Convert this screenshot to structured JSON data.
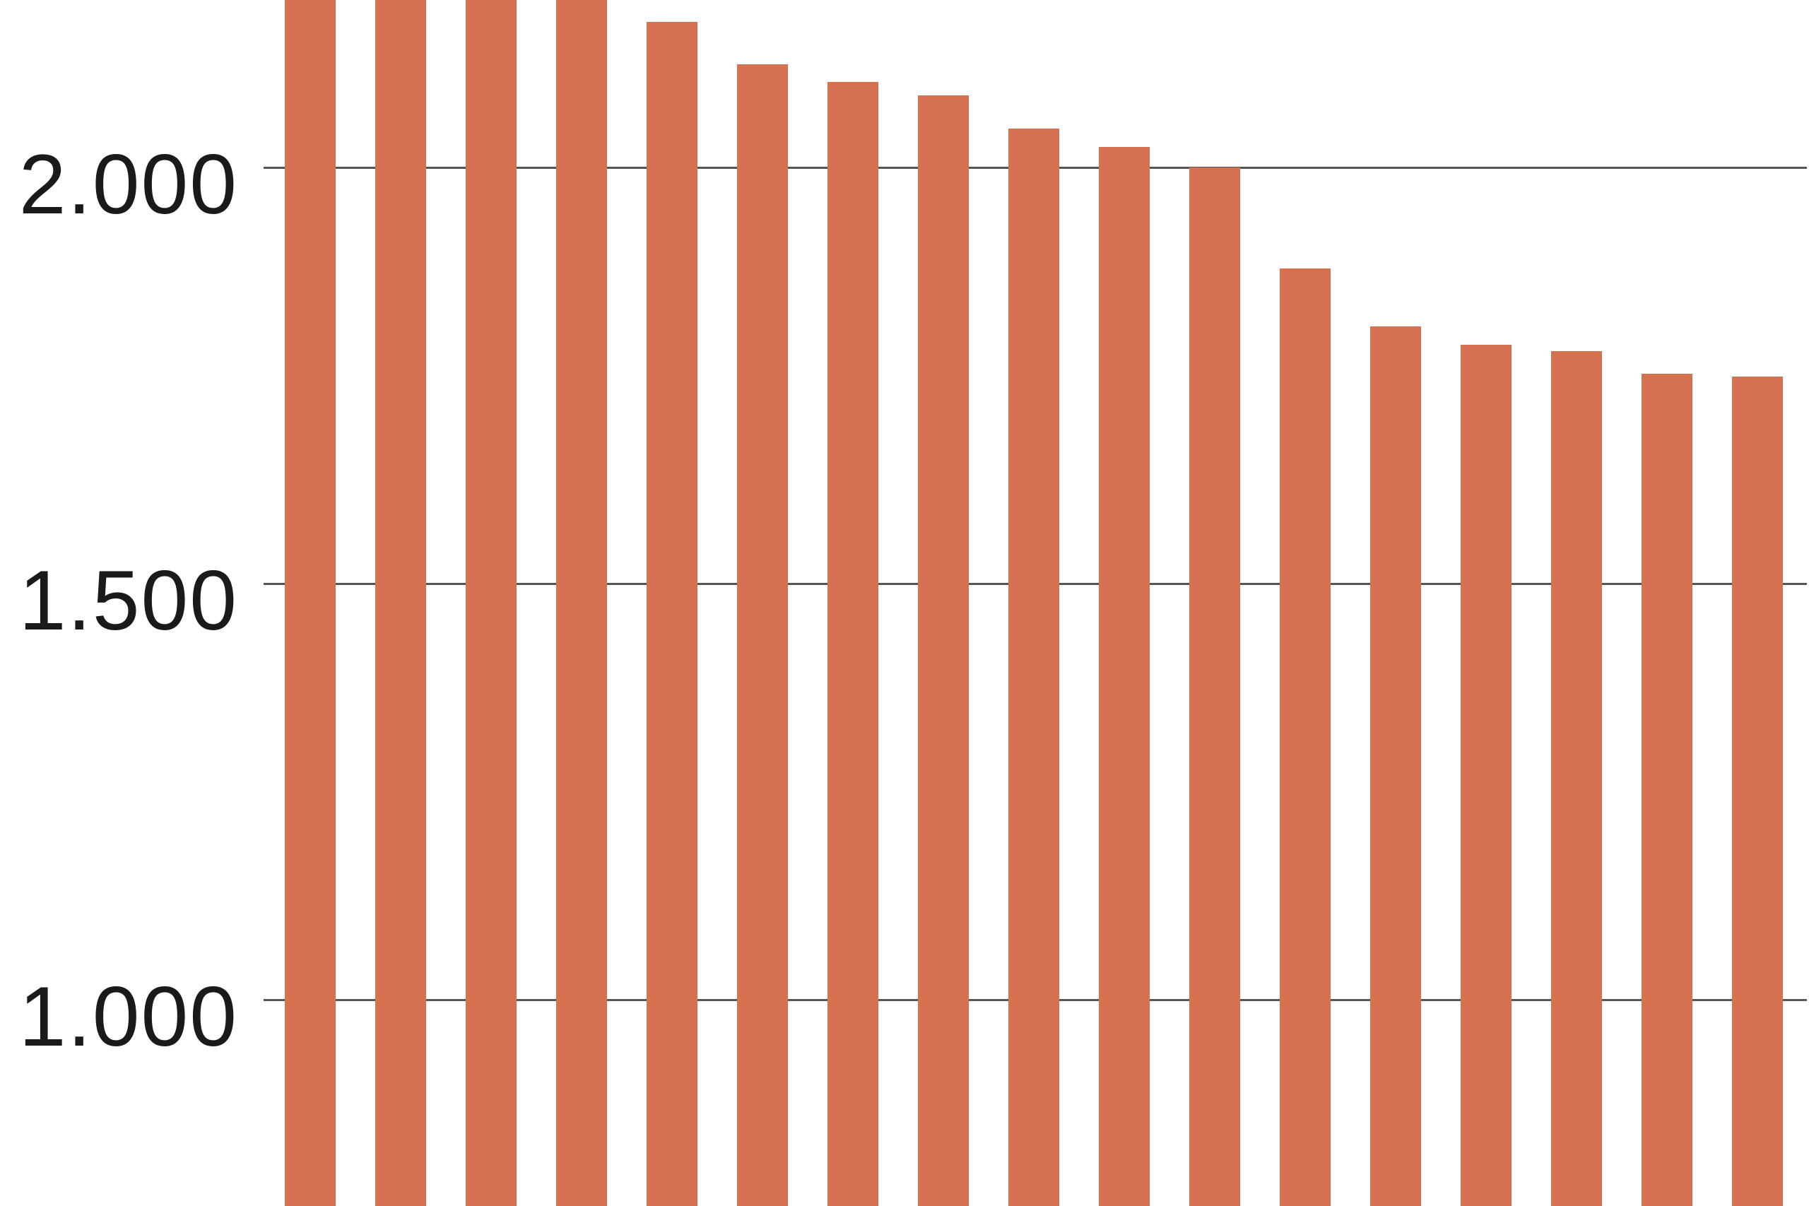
{
  "chart_data": {
    "type": "bar",
    "title": "",
    "legend": false,
    "y_axis": {
      "ticks": [
        {
          "value": 2000,
          "label": "2.000"
        },
        {
          "value": 1500,
          "label": "1.500"
        },
        {
          "value": 1000,
          "label": "1.000"
        }
      ],
      "number_format": "dot-as-thousands-separator",
      "gridlines": "horizontal-only",
      "axis_line": false,
      "visible_value_range": [
        754,
        2201
      ]
    },
    "x_axis": {
      "labels": [],
      "visible": false
    },
    "bars": {
      "count": 17,
      "values": [
        null,
        null,
        null,
        null,
        2175,
        2124,
        2103,
        2087,
        2047,
        2025,
        2000,
        1879,
        1809,
        1787,
        1779,
        1752,
        1749
      ],
      "clipped_at_top": [
        true,
        true,
        true,
        true,
        false,
        false,
        false,
        false,
        false,
        false,
        false,
        false,
        false,
        false,
        false,
        false,
        false
      ],
      "note": "Bars 1-4 extend above the top image edge (values not readable); every bar extends below the bottom image edge, baseline not visible."
    },
    "colors": {
      "bar": "#d5714e",
      "gridline": "#55565a",
      "label": "#1a1a1a",
      "background": "#ffffff"
    }
  }
}
